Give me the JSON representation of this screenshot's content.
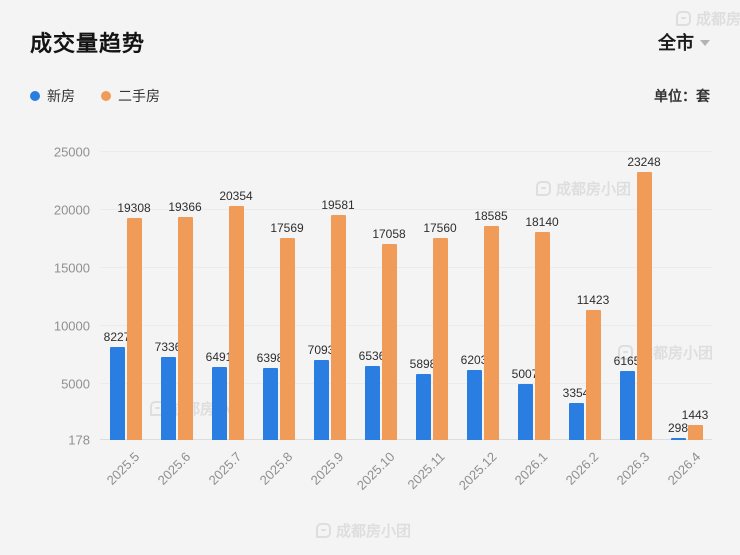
{
  "header": {
    "title": "成交量趋势",
    "filter_label": "全市",
    "unit_label": "单位：套"
  },
  "legend": [
    {
      "label": "新房",
      "color": "#2a7de1"
    },
    {
      "label": "二手房",
      "color": "#f09b57"
    }
  ],
  "watermark": {
    "text": "成都房小团"
  },
  "chart_data": {
    "type": "bar",
    "title": "成交量趋势",
    "unit": "套",
    "categories": [
      "2025.5",
      "2025.6",
      "2025.7",
      "2025.8",
      "2025.9",
      "2025.10",
      "2025.11",
      "2025.12",
      "2026.1",
      "2026.2",
      "2026.3",
      "2026.4"
    ],
    "series": [
      {
        "name": "新房",
        "color": "#2a7de1",
        "values": [
          8227,
          7336,
          6491,
          6398,
          7093,
          6536,
          5898,
          6203,
          5007,
          3354,
          6165,
          298
        ]
      },
      {
        "name": "二手房",
        "color": "#f09b57",
        "values": [
          19308,
          19366,
          20354,
          17569,
          19581,
          17058,
          17560,
          18585,
          18140,
          11423,
          23248,
          1443
        ]
      }
    ],
    "ylim": [
      178,
      25000
    ],
    "yticks": [
      178,
      5000,
      10000,
      15000,
      20000,
      25000
    ],
    "grid": true,
    "legend_position": "top-left",
    "xlabel": "",
    "ylabel": ""
  }
}
